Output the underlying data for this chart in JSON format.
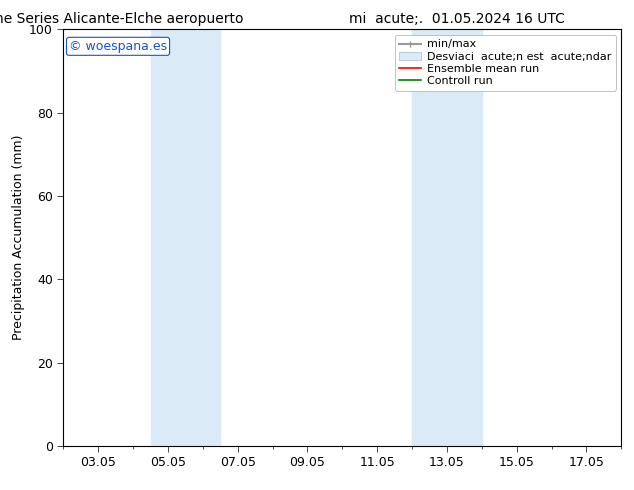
{
  "title_left": "ENS Time Series Alicante-Elche aeropuerto",
  "title_right": "mi  acute;.  01.05.2024 16 UTC",
  "ylabel": "Precipitation Accumulation (mm)",
  "ylim": [
    0,
    100
  ],
  "yticks": [
    0,
    20,
    40,
    60,
    80,
    100
  ],
  "x_labels": [
    "03.05",
    "05.05",
    "07.05",
    "09.05",
    "11.05",
    "13.05",
    "15.05",
    "17.05"
  ],
  "x_positions": [
    2,
    4,
    6,
    8,
    10,
    12,
    14,
    16
  ],
  "xlim": [
    1,
    17
  ],
  "shaded_regions": [
    {
      "x_start": 3.5,
      "x_end": 5.5,
      "color": "#daeaf7"
    },
    {
      "x_start": 11.0,
      "x_end": 13.0,
      "color": "#daeaf7"
    }
  ],
  "watermark_text": "© woespana.es",
  "watermark_color": "#1155cc",
  "background_color": "#ffffff",
  "grid_color": "#cccccc",
  "font_size": 9,
  "title_font_size": 10
}
